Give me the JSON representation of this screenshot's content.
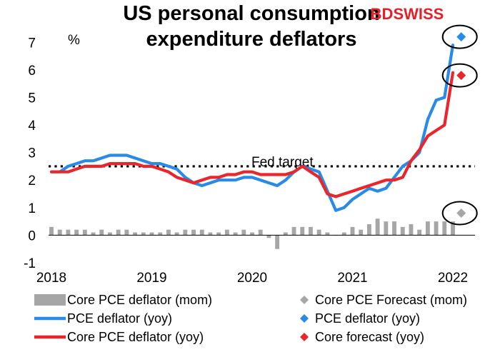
{
  "brand": {
    "part1": "BD",
    "part2": "SWISS",
    "color": "#e4212b"
  },
  "chart_data": {
    "type": "line",
    "title_line1": "US personal consumption",
    "title_line2": "expenditure deflators",
    "y_unit": "%",
    "ylim": [
      -1,
      7.5
    ],
    "yticks": [
      "-1",
      "0",
      "1",
      "2",
      "3",
      "4",
      "5",
      "6",
      "7"
    ],
    "xticks": [
      "2018",
      "2019",
      "2020",
      "2021",
      "2022"
    ],
    "grid": false,
    "legend_position": "bottom",
    "annotation": {
      "text": "Fed target",
      "value": 2.5
    },
    "months": [
      "2018-01",
      "2018-02",
      "2018-03",
      "2018-04",
      "2018-05",
      "2018-06",
      "2018-07",
      "2018-08",
      "2018-09",
      "2018-10",
      "2018-11",
      "2018-12",
      "2019-01",
      "2019-02",
      "2019-03",
      "2019-04",
      "2019-05",
      "2019-06",
      "2019-07",
      "2019-08",
      "2019-09",
      "2019-10",
      "2019-11",
      "2019-12",
      "2020-01",
      "2020-02",
      "2020-03",
      "2020-04",
      "2020-05",
      "2020-06",
      "2020-07",
      "2020-08",
      "2020-09",
      "2020-10",
      "2020-11",
      "2020-12",
      "2021-01",
      "2021-02",
      "2021-03",
      "2021-04",
      "2021-05",
      "2021-06",
      "2021-07",
      "2021-08",
      "2021-09",
      "2021-10",
      "2021-11",
      "2021-12",
      "2022-01"
    ],
    "series": [
      {
        "name": "Core PCE deflator (mom)",
        "kind": "bar",
        "color": "#a6a6a6",
        "values": [
          0.3,
          0.2,
          0.2,
          0.2,
          0.2,
          0.1,
          0.2,
          0.1,
          0.2,
          0.2,
          0.1,
          0.1,
          0.1,
          0.1,
          0.2,
          0.1,
          0.2,
          0.2,
          0.2,
          0.1,
          0.1,
          0.2,
          0.1,
          0.2,
          0.1,
          0.2,
          -0.1,
          -0.5,
          0.1,
          0.3,
          0.3,
          0.3,
          0.2,
          0.1,
          0.0,
          0.1,
          0.3,
          0.2,
          0.4,
          0.6,
          0.5,
          0.5,
          0.3,
          0.4,
          0.2,
          0.5,
          0.5,
          0.5,
          0.5
        ]
      },
      {
        "name": "PCE deflator (yoy)",
        "kind": "line",
        "color": "#2a8ae8",
        "values": [
          2.3,
          2.3,
          2.5,
          2.6,
          2.7,
          2.7,
          2.8,
          2.9,
          2.9,
          2.9,
          2.8,
          2.7,
          2.6,
          2.6,
          2.5,
          2.4,
          2.1,
          1.9,
          1.8,
          1.9,
          2.0,
          2.0,
          2.0,
          2.1,
          2.1,
          2.0,
          1.9,
          1.8,
          2.0,
          2.3,
          2.5,
          2.4,
          2.3,
          1.6,
          0.9,
          1.0,
          1.3,
          1.5,
          1.7,
          1.6,
          1.7,
          2.1,
          2.5,
          2.7,
          3.0,
          4.2,
          4.9,
          5.0,
          6.9
        ]
      },
      {
        "name": "Core PCE deflator (yoy)",
        "kind": "line",
        "color": "#e8262c",
        "values": [
          2.3,
          2.3,
          2.3,
          2.4,
          2.5,
          2.5,
          2.5,
          2.6,
          2.6,
          2.6,
          2.6,
          2.5,
          2.5,
          2.4,
          2.3,
          2.1,
          2.0,
          1.9,
          2.0,
          2.1,
          2.1,
          2.2,
          2.2,
          2.3,
          2.3,
          2.2,
          2.2,
          2.2,
          2.2,
          2.3,
          2.5,
          2.3,
          2.1,
          1.5,
          1.4,
          1.5,
          1.6,
          1.7,
          1.8,
          1.9,
          2.0,
          2.0,
          2.1,
          2.7,
          3.1,
          3.6,
          3.8,
          4.0,
          5.9
        ]
      }
    ],
    "forecasts": [
      {
        "name": "Core PCE Forecast (mom)",
        "color": "#a6a6a6",
        "month": "2022-02",
        "value": 0.8
      },
      {
        "name": "PCE deflator (yoy)",
        "color": "#2a8ae8",
        "month": "2022-02",
        "value": 7.2
      },
      {
        "name": "Core forecast (yoy)",
        "color": "#e8262c",
        "month": "2022-02",
        "value": 5.8
      }
    ]
  }
}
